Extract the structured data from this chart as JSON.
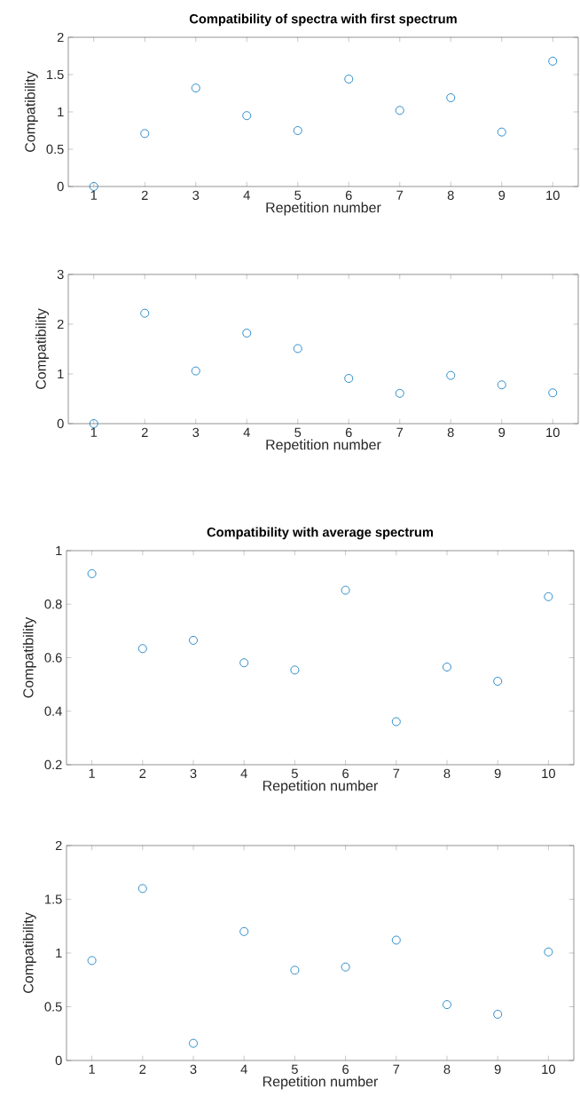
{
  "chart_data": [
    {
      "type": "scatter",
      "title": "Compatibility of spectra with first spectrum",
      "xlabel": "Repetition number",
      "ylabel": "Compatibility",
      "x": [
        1,
        2,
        3,
        4,
        5,
        6,
        7,
        8,
        9,
        10
      ],
      "values": [
        0,
        0.71,
        1.32,
        0.95,
        0.75,
        1.44,
        1.02,
        1.19,
        0.73,
        1.68
      ],
      "color": "#0072bd",
      "marker": "circle",
      "xlim": [
        0.5,
        10.5
      ],
      "xticks": [
        1,
        2,
        3,
        4,
        5,
        6,
        7,
        8,
        9,
        10
      ],
      "ylim": [
        0,
        2
      ],
      "yticks": [
        0,
        0.5,
        1,
        1.5,
        2
      ]
    },
    {
      "type": "scatter",
      "xlabel": "Repetition number",
      "ylabel": "Compatibility",
      "x": [
        1,
        2,
        3,
        4,
        5,
        6,
        7,
        8,
        9,
        10
      ],
      "values": [
        0,
        2.22,
        1.06,
        1.82,
        1.51,
        0.91,
        0.61,
        0.97,
        0.78,
        0.62
      ],
      "color": "#0072bd",
      "marker": "circle",
      "xlim": [
        0.5,
        10.5
      ],
      "xticks": [
        1,
        2,
        3,
        4,
        5,
        6,
        7,
        8,
        9,
        10
      ],
      "ylim": [
        0,
        3
      ],
      "yticks": [
        0,
        1,
        2,
        3
      ]
    },
    {
      "type": "scatter",
      "title": "Compatibility with average spectrum",
      "xlabel": "Repetition number",
      "ylabel": "Compatibility",
      "x": [
        1,
        2,
        3,
        4,
        5,
        6,
        7,
        8,
        9,
        10
      ],
      "values": [
        0.914,
        0.634,
        0.665,
        0.581,
        0.554,
        0.852,
        0.361,
        0.565,
        0.512,
        0.828
      ],
      "color": "#0072bd",
      "marker": "circle",
      "xlim": [
        0.5,
        10.5
      ],
      "xticks": [
        1,
        2,
        3,
        4,
        5,
        6,
        7,
        8,
        9,
        10
      ],
      "ylim": [
        0.2,
        1
      ],
      "yticks": [
        0.2,
        0.4,
        0.6,
        0.8,
        1
      ]
    },
    {
      "type": "scatter",
      "xlabel": "Repetition number",
      "ylabel": "Compatibility",
      "x": [
        1,
        2,
        3,
        4,
        5,
        6,
        7,
        8,
        9,
        10
      ],
      "values": [
        0.93,
        1.6,
        0.16,
        1.2,
        0.84,
        0.87,
        1.12,
        0.52,
        0.43,
        1.01
      ],
      "color": "#0072bd",
      "marker": "circle",
      "xlim": [
        0.5,
        10.5
      ],
      "xticks": [
        1,
        2,
        3,
        4,
        5,
        6,
        7,
        8,
        9,
        10
      ],
      "ylim": [
        0,
        2
      ],
      "yticks": [
        0,
        0.5,
        1,
        1.5,
        2
      ]
    }
  ]
}
